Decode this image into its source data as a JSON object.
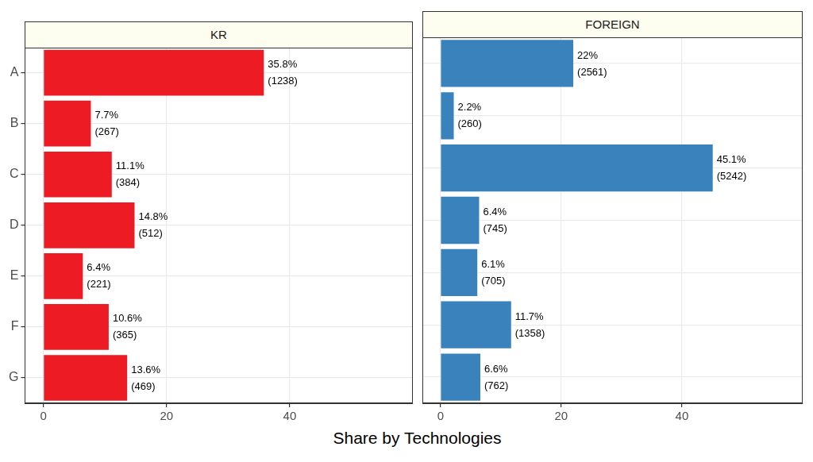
{
  "chart_data": [
    {
      "type": "bar",
      "title": "KR",
      "orientation": "horizontal",
      "categories": [
        "A",
        "B",
        "C",
        "D",
        "E",
        "F",
        "G"
      ],
      "values": [
        35.8,
        7.7,
        11.1,
        14.8,
        6.4,
        10.6,
        13.6
      ],
      "value_labels": [
        "35.8%",
        "7.7%",
        "11.1%",
        "14.8%",
        "6.4%",
        "10.6%",
        "13.6%"
      ],
      "count_labels": [
        "(1238)",
        "(267)",
        "(384)",
        "(512)",
        "(221)",
        "(365)",
        "(469)"
      ],
      "color": "#ED1C24",
      "xlim": [
        -3,
        60
      ],
      "xticks": [
        0,
        20,
        40
      ],
      "grid": true,
      "data_labels": true,
      "x_label": "Share by Technologies"
    },
    {
      "type": "bar",
      "title": "FOREIGN",
      "orientation": "horizontal",
      "categories": [
        "A",
        "B",
        "C",
        "D",
        "E",
        "F",
        "G"
      ],
      "values": [
        22,
        2.2,
        45.1,
        6.4,
        6.1,
        11.7,
        6.6
      ],
      "value_labels": [
        "22%",
        "2.2%",
        "45.1%",
        "6.4%",
        "6.1%",
        "11.7%",
        "6.6%"
      ],
      "count_labels": [
        "(2561)",
        "(260)",
        "(5242)",
        "(745)",
        "(705)",
        "(1358)",
        "(762)"
      ],
      "color": "#3A82BC",
      "xlim": [
        -3,
        60
      ],
      "xticks": [
        0,
        20,
        40
      ],
      "grid": true,
      "data_labels": true,
      "tick_labels": "x"
    }
  ]
}
